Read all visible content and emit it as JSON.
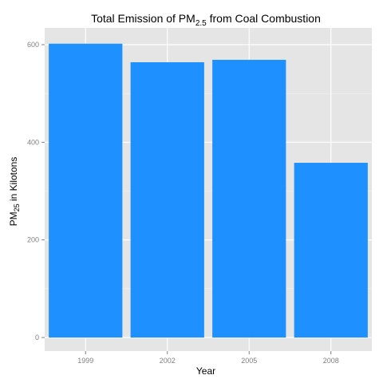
{
  "chart_data": {
    "type": "bar",
    "title": {
      "prefix": "Total Emission of PM",
      "subscript": "2.5",
      "suffix": " from Coal Combustion"
    },
    "xlabel": "Year",
    "ylabel": {
      "prefix": "PM",
      "subscript": "25",
      "suffix": " in Kilotons"
    },
    "categories": [
      "1999",
      "2002",
      "2005",
      "2008"
    ],
    "values": [
      602,
      564,
      569,
      358
    ],
    "ylim": [
      0,
      640
    ],
    "yticks": [
      0,
      200,
      400,
      600
    ],
    "grid": true,
    "colors": {
      "bar": "#1e90ff",
      "panel": "#e5e5e5",
      "grid_major": "#ffffff",
      "grid_minor": "#f2f2f2"
    }
  }
}
